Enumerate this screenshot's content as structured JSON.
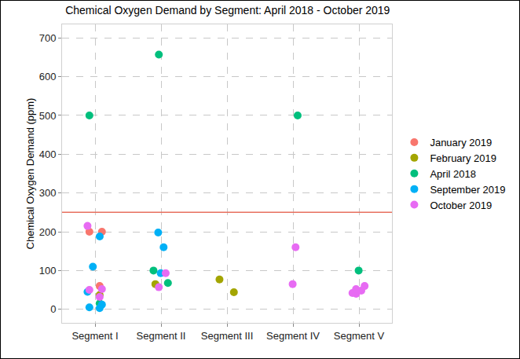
{
  "chart_data": {
    "type": "scatter",
    "title": "Chemical Oxygen Demand by Segment: April 2018 - October 2019",
    "y_label": "Chemical Oxygen Demand (ppm)",
    "categories": [
      "Segment I",
      "Segment II",
      "Segment III",
      "Segment IV",
      "Segment V"
    ],
    "series": [
      {
        "name": "January 2019",
        "color": "#F8766D",
        "x": [
          "Segment I",
          "Segment I",
          "Segment I"
        ],
        "values": [
          200,
          200,
          60
        ]
      },
      {
        "name": "February 2019",
        "color": "#A3A500",
        "x": [
          "Segment I",
          "Segment II",
          "Segment III",
          "Segment III"
        ],
        "values": [
          37,
          65,
          77,
          44
        ]
      },
      {
        "name": "April 2018",
        "color": "#00BF7D",
        "x": [
          "Segment I",
          "Segment I",
          "Segment II",
          "Segment II",
          "Segment II",
          "Segment IV",
          "Segment V"
        ],
        "values": [
          500,
          15,
          657,
          100,
          68,
          500,
          100
        ]
      },
      {
        "name": "September 2019",
        "color": "#00B0F6",
        "x": [
          "Segment I",
          "Segment I",
          "Segment I",
          "Segment I",
          "Segment I",
          "Segment I",
          "Segment II",
          "Segment II",
          "Segment II"
        ],
        "values": [
          188,
          110,
          45,
          12,
          5,
          3,
          198,
          160,
          93
        ]
      },
      {
        "name": "October 2019",
        "color": "#E76BF3",
        "x": [
          "Segment I",
          "Segment I",
          "Segment I",
          "Segment I",
          "Segment II",
          "Segment II",
          "Segment IV",
          "Segment IV",
          "Segment V",
          "Segment V",
          "Segment V",
          "Segment V",
          "Segment V"
        ],
        "values": [
          215,
          52,
          50,
          32,
          93,
          57,
          160,
          65,
          60,
          52,
          48,
          42,
          40
        ]
      }
    ],
    "threshold": 250,
    "ylim": [
      -35,
      735
    ],
    "yticks": [
      0,
      100,
      200,
      300,
      400,
      500,
      600,
      700
    ],
    "grid": true,
    "legend": "right",
    "marker": "circle"
  }
}
